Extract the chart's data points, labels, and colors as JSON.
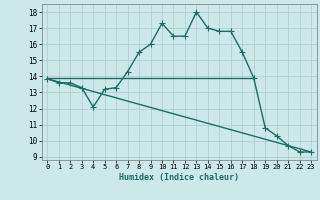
{
  "title": "",
  "xlabel": "Humidex (Indice chaleur)",
  "bg_color": "#cce8e8",
  "line_color": "#1e6b6b",
  "grid_color": "#aacccc",
  "xlim": [
    -0.5,
    23.5
  ],
  "ylim": [
    8.8,
    18.5
  ],
  "yticks": [
    9,
    10,
    11,
    12,
    13,
    14,
    15,
    16,
    17,
    18
  ],
  "xticks": [
    0,
    1,
    2,
    3,
    4,
    5,
    6,
    7,
    8,
    9,
    10,
    11,
    12,
    13,
    14,
    15,
    16,
    17,
    18,
    19,
    20,
    21,
    22,
    23
  ],
  "curve1_x": [
    0,
    1,
    2,
    3,
    4,
    5,
    6,
    7,
    8,
    9,
    10,
    11,
    12,
    13,
    14,
    15,
    16,
    17,
    18,
    19,
    20,
    21,
    22,
    23
  ],
  "curve1_y": [
    13.85,
    13.6,
    13.6,
    13.3,
    12.1,
    13.2,
    13.3,
    14.3,
    15.5,
    16.0,
    17.3,
    16.5,
    16.5,
    18.0,
    17.0,
    16.8,
    16.8,
    15.5,
    13.9,
    10.8,
    10.3,
    9.7,
    9.3,
    9.3
  ],
  "curve2_x": [
    0,
    18
  ],
  "curve2_y": [
    13.9,
    13.9
  ],
  "curve3_x": [
    0,
    23
  ],
  "curve3_y": [
    13.85,
    9.3
  ],
  "marker_size": 2.5,
  "line_width": 1.0
}
